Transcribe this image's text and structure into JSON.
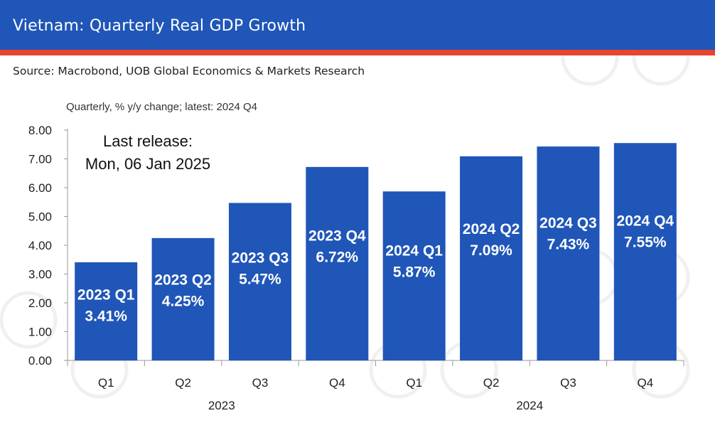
{
  "header": {
    "title": "Vietnam: Quarterly Real GDP Growth",
    "source": "Source: Macrobond, UOB Global Economics & Markets Research"
  },
  "colors": {
    "title_bar": "#1f56b8",
    "stripe": "#e8442e",
    "bar": "#1f56b8",
    "bar_label": "#ffffff"
  },
  "chart_data": {
    "type": "bar",
    "title": "Vietnam: Quarterly Real GDP Growth",
    "subtitle": "Quarterly, % y/y change; latest: 2024 Q4",
    "annotation_line1": "Last release:",
    "annotation_line2": "Mon, 06 Jan 2025",
    "categories": [
      "Q1",
      "Q2",
      "Q3",
      "Q4",
      "Q1",
      "Q2",
      "Q3",
      "Q4"
    ],
    "groups": [
      {
        "label": "2023",
        "start": 0,
        "end": 3
      },
      {
        "label": "2024",
        "start": 4,
        "end": 7
      }
    ],
    "values": [
      3.41,
      4.25,
      5.47,
      6.72,
      5.87,
      7.09,
      7.43,
      7.55
    ],
    "bar_label_top": [
      "2023 Q1",
      "2023 Q2",
      "2023 Q3",
      "2023 Q4",
      "2024 Q1",
      "2024 Q2",
      "2024 Q3",
      "2024 Q4"
    ],
    "bar_label_bottom": [
      "3.41%",
      "4.25%",
      "5.47%",
      "6.72%",
      "5.87%",
      "7.09%",
      "7.43%",
      "7.55%"
    ],
    "yticks": [
      "0.00",
      "1.00",
      "2.00",
      "3.00",
      "4.00",
      "5.00",
      "6.00",
      "7.00",
      "8.00"
    ],
    "ylim": [
      0,
      8
    ],
    "xlabel": "",
    "ylabel": "",
    "grid": false,
    "legend": "none"
  }
}
